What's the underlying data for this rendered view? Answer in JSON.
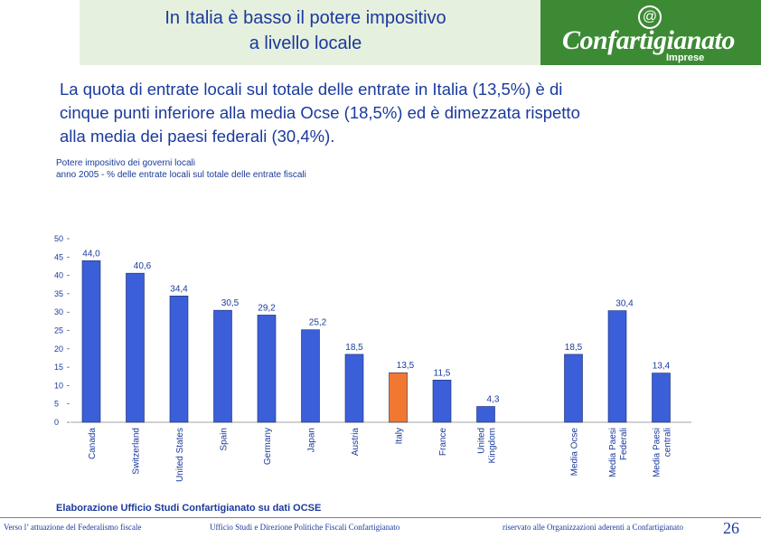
{
  "header": {
    "title_line1": "In Italia è basso il potere impositivo",
    "title_line2": "a livello locale"
  },
  "logo": {
    "symbol": "@",
    "name": "Confartigianato",
    "sub": "Imprese"
  },
  "headline": {
    "line1": "La quota di entrate locali sul totale delle entrate in Italia (13,5%) è di",
    "line2": "cinque punti inferiore alla media Ocse (18,5%) ed è dimezzata rispetto",
    "line3": "alla media dei paesi federali (30,4%)."
  },
  "colors": {
    "bar": "#3a5fd9",
    "highlight": "#f07830",
    "text": "#1a3a9c",
    "logo_bg": "#3d8a35",
    "title_bg": "#e6f0df"
  },
  "chart_data": {
    "type": "bar",
    "title": "Potere impositivo dei governi locali",
    "subtitle": "anno 2005 - % delle entrate locali sul totale delle entrate fiscali",
    "ylim": [
      0,
      50
    ],
    "yticks": [
      "0",
      "5",
      "10",
      "15",
      "20",
      "25",
      "30",
      "35",
      "40",
      "45",
      "50"
    ],
    "grid": false,
    "bars": [
      {
        "category": [
          "Canada"
        ],
        "value": 44.0,
        "label": "44,0",
        "highlight": false
      },
      {
        "category": [
          "Switzerland"
        ],
        "value": 40.6,
        "label": "40,6",
        "highlight": false
      },
      {
        "category": [
          "United States"
        ],
        "value": 34.4,
        "label": "34,4",
        "highlight": false
      },
      {
        "category": [
          "Spain"
        ],
        "value": 30.5,
        "label": "30,5",
        "highlight": false
      },
      {
        "category": [
          "Germany"
        ],
        "value": 29.2,
        "label": "29,2",
        "highlight": false
      },
      {
        "category": [
          "Japan"
        ],
        "value": 25.2,
        "label": "25,2",
        "highlight": false
      },
      {
        "category": [
          "Austria"
        ],
        "value": 18.5,
        "label": "18,5",
        "highlight": false
      },
      {
        "category": [
          "Italy"
        ],
        "value": 13.5,
        "label": "13,5",
        "highlight": true
      },
      {
        "category": [
          "France"
        ],
        "value": 11.5,
        "label": "11,5",
        "highlight": false
      },
      {
        "category": [
          "United",
          "Kingdom"
        ],
        "value": 4.3,
        "label": "4,3",
        "highlight": false
      },
      {
        "category": [
          "Media Ocse"
        ],
        "value": 18.5,
        "label": "18,5",
        "highlight": false,
        "gap_before": true
      },
      {
        "category": [
          "Media Paesi",
          "Federali"
        ],
        "value": 30.4,
        "label": "30,4",
        "highlight": false
      },
      {
        "category": [
          "Media Paesi",
          "centrali"
        ],
        "value": 13.4,
        "label": "13,4",
        "highlight": false
      }
    ]
  },
  "source_note": "Elaborazione Ufficio Studi Confartigianato su dati OCSE",
  "footer": {
    "left": "Verso l’ attuazione del Federalismo fiscale",
    "center": "Ufficio Studi e Direzione Politiche Fiscali Confartigianato",
    "right": "riservato alle Organizzazioni aderenti a Confartigianato",
    "page": "26"
  }
}
